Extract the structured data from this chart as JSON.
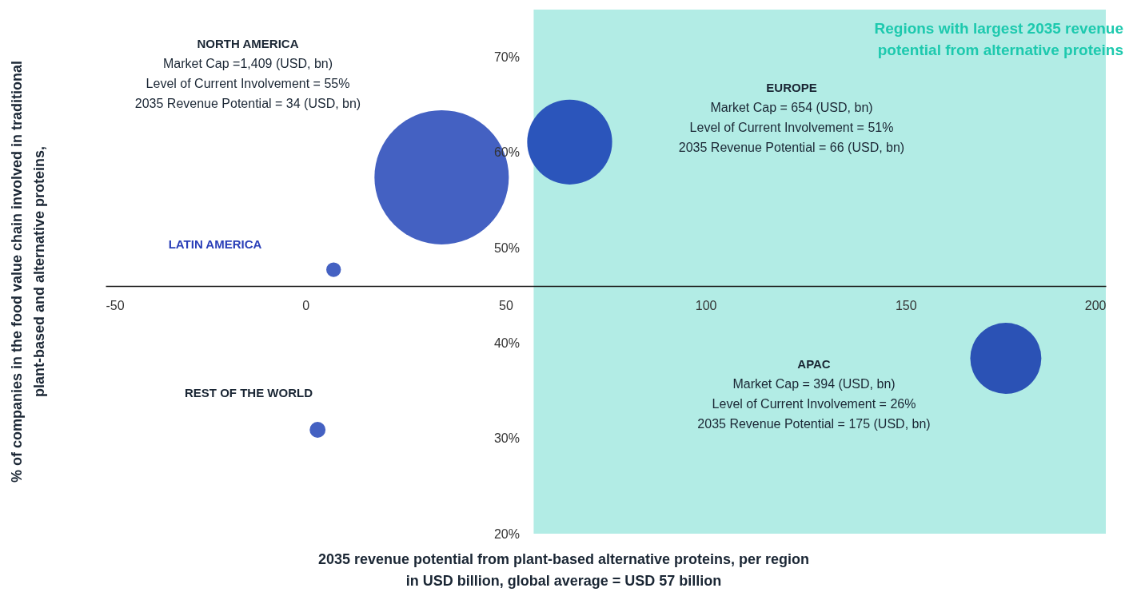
{
  "chart_data": {
    "type": "bubble",
    "xlabel": "2035 revenue potential from plant-based alternative proteins, per region\nin USD billion, global average = USD 57 billion",
    "ylabel": "% of companies in the food value chain involved in traditional\nplant-based and alternative proteins,",
    "x": [
      34,
      66,
      175,
      7,
      3
    ],
    "values": [
      57.4,
      61.1,
      38.4,
      47.7,
      30.9
    ],
    "sizes": [
      1,
      0.4,
      0.28,
      0.012,
      0.014
    ],
    "colors": [
      "#4461c2",
      "#2b55bb",
      "#2b52b5",
      "#4461c2",
      "#4461c2"
    ],
    "marker": "circle",
    "xlim": [
      -50,
      200
    ],
    "ylim": [
      20,
      75
    ],
    "xticks": [
      -50,
      0,
      50,
      100,
      150,
      200
    ],
    "yticks": [
      {
        "value": 20,
        "label": "20%"
      },
      {
        "value": 30,
        "label": "30%"
      },
      {
        "value": 40,
        "label": "40%"
      },
      {
        "value": 50,
        "label": "50%"
      },
      {
        "value": 60,
        "label": "60%"
      },
      {
        "value": 70,
        "label": "70%"
      }
    ],
    "bands": [
      {
        "axis": "x",
        "from": 57,
        "to": 200,
        "label": "Regions with largest 2035 revenue\npotential from alternative proteins",
        "color": "#b2ece5"
      }
    ],
    "annotations": [
      "NORTH AMERICA",
      "Market Cap =1,409  (USD, bn)",
      "Level of Current Involvement = 55%",
      "2035 Revenue Potential = 34 (USD, bn)",
      "EUROPE",
      "Market Cap = 654 (USD, bn)",
      "Level of Current Involvement = 51%",
      "2035 Revenue Potential = 66 (USD, bn)",
      "APAC",
      "Market Cap = 394 (USD, bn)",
      "Level of Current Involvement = 26%",
      "2035 Revenue Potential = 175 (USD, bn)",
      "LATIN AMERICA",
      "REST OF THE WORLD"
    ]
  }
}
